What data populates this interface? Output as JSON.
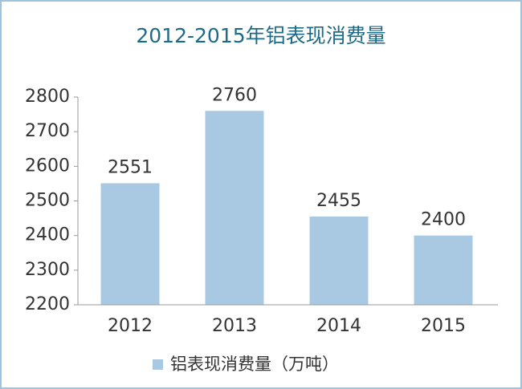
{
  "chart_data": {
    "type": "bar",
    "title": "2012-2015年铝表现消费量",
    "categories": [
      "2012",
      "2013",
      "2014",
      "2015"
    ],
    "series": [
      {
        "name": "铝表现消费量（万吨）",
        "color": "#a9c9e3",
        "values": [
          2551,
          2760,
          2455,
          2400
        ]
      }
    ],
    "ylim": [
      2200,
      2800
    ],
    "yticks": [
      2200,
      2300,
      2400,
      2500,
      2600,
      2700,
      2800
    ],
    "grid": false,
    "legend": "bottom"
  }
}
